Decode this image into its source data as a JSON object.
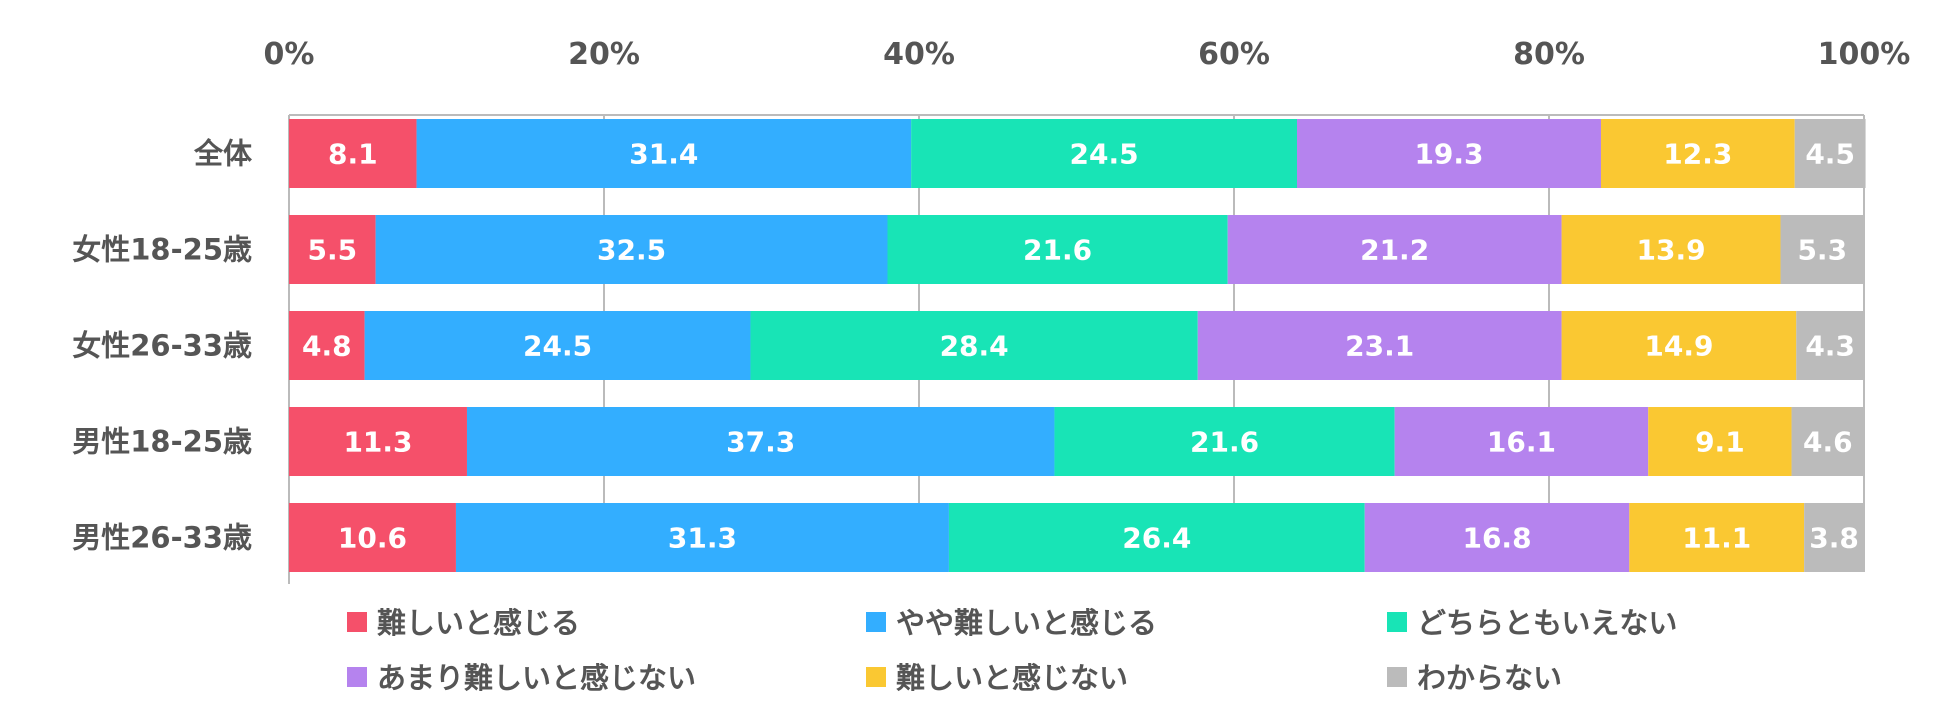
{
  "chart_data": {
    "type": "bar",
    "orientation": "horizontal",
    "stacked": true,
    "xlim": [
      0,
      100
    ],
    "x_ticks": [
      "0%",
      "20%",
      "40%",
      "60%",
      "80%",
      "100%"
    ],
    "x_axis_position": "top",
    "legend_position": "bottom",
    "categories": [
      "全体",
      "女性18-25歳",
      "女性26-33歳",
      "男性18-25歳",
      "男性26-33歳"
    ],
    "series": [
      {
        "name": "難しいと感じる",
        "color": "#F5506A",
        "values": [
          8.1,
          5.5,
          4.8,
          11.3,
          10.6
        ]
      },
      {
        "name": "やや難しいと感じる",
        "color": "#33AEFF",
        "values": [
          31.4,
          32.5,
          24.5,
          37.3,
          31.3
        ]
      },
      {
        "name": "どちらともいえない",
        "color": "#18E4B6",
        "values": [
          24.5,
          21.6,
          28.4,
          21.6,
          26.4
        ]
      },
      {
        "name": "あまり難しいと感じない",
        "color": "#B583EE",
        "values": [
          19.3,
          21.2,
          23.1,
          16.1,
          16.8
        ]
      },
      {
        "name": "難しいと感じない",
        "color": "#FAC832",
        "values": [
          12.3,
          13.9,
          14.9,
          9.1,
          11.1
        ]
      },
      {
        "name": "わからない",
        "color": "#BBBBBB",
        "values": [
          4.5,
          5.3,
          4.3,
          4.6,
          3.8
        ]
      }
    ]
  }
}
